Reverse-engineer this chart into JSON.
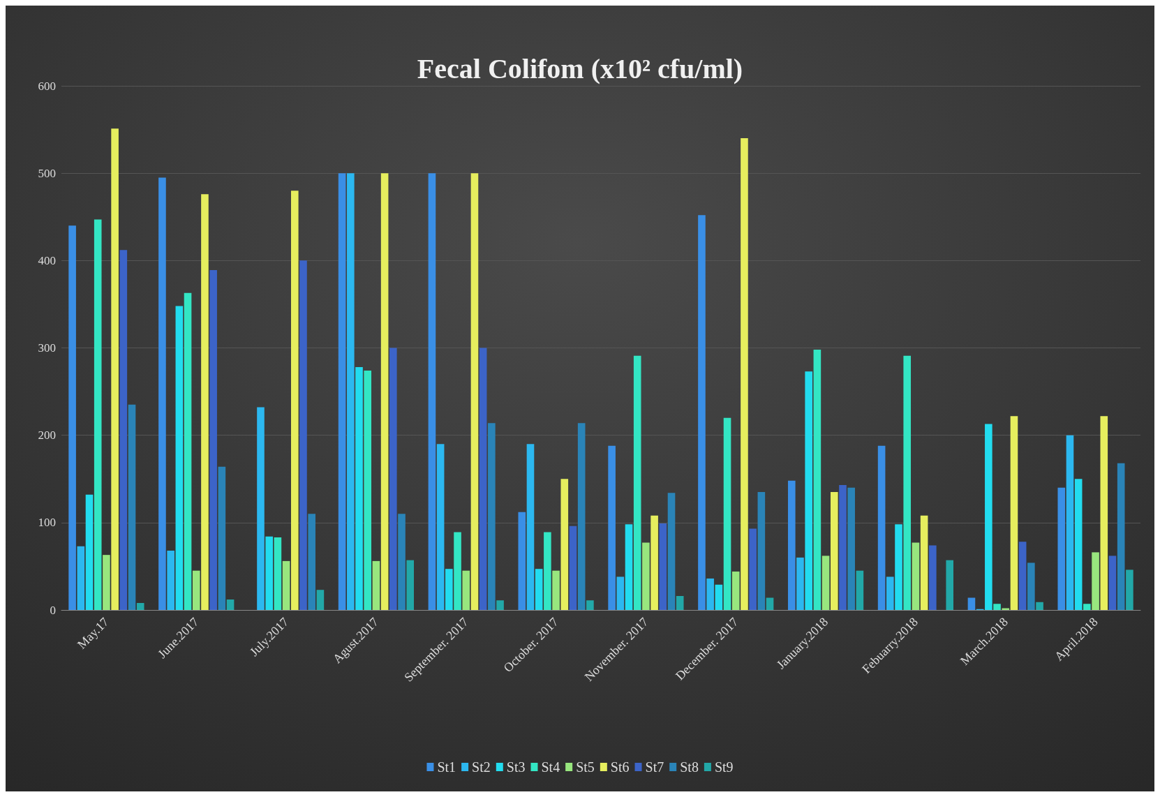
{
  "chart_data": {
    "type": "bar",
    "title": "Fecal Colifom (x10² cfu/ml)",
    "categories": [
      "May.17",
      "June.2017",
      "July.2017",
      "Agust.2017",
      "September. 2017",
      "October. 2017",
      "November. 2017",
      "December. 2017",
      "January.2018",
      "Febuarry.2018",
      "March.2018",
      "April.2018"
    ],
    "series": [
      {
        "name": "St1",
        "color": "#3a8fe6",
        "values": [
          440,
          495,
          0,
          500,
          500,
          112,
          188,
          452,
          148,
          188,
          14,
          140
        ]
      },
      {
        "name": "St2",
        "color": "#2cb8f0",
        "values": [
          73,
          68,
          232,
          500,
          190,
          190,
          38,
          36,
          60,
          38,
          1,
          200
        ]
      },
      {
        "name": "St3",
        "color": "#22dcef",
        "values": [
          132,
          348,
          84,
          278,
          47,
          47,
          98,
          29,
          273,
          98,
          213,
          150
        ]
      },
      {
        "name": "St4",
        "color": "#33e6c4",
        "values": [
          447,
          363,
          83,
          274,
          89,
          89,
          291,
          220,
          298,
          291,
          7,
          7
        ]
      },
      {
        "name": "St5",
        "color": "#98e67e",
        "values": [
          63,
          45,
          56,
          56,
          45,
          45,
          77,
          44,
          62,
          77,
          2,
          66
        ]
      },
      {
        "name": "St6",
        "color": "#e6ee5e",
        "values": [
          551,
          476,
          480,
          500,
          500,
          150,
          108,
          540,
          135,
          108,
          222,
          222
        ]
      },
      {
        "name": "St7",
        "color": "#3c64c8",
        "values": [
          412,
          389,
          400,
          300,
          300,
          96,
          99,
          93,
          143,
          74,
          78,
          62
        ]
      },
      {
        "name": "St8",
        "color": "#2a84b8",
        "values": [
          235,
          164,
          110,
          110,
          214,
          214,
          134,
          135,
          140,
          0,
          54,
          168
        ]
      },
      {
        "name": "St9",
        "color": "#22a8a8",
        "values": [
          8,
          12,
          23,
          57,
          11,
          11,
          16,
          14,
          45,
          57,
          9,
          46
        ]
      }
    ],
    "ylim": [
      0,
      600
    ],
    "yticks": [
      0,
      100,
      200,
      300,
      400,
      500,
      600
    ],
    "grid": "y",
    "legend": "bottom"
  }
}
